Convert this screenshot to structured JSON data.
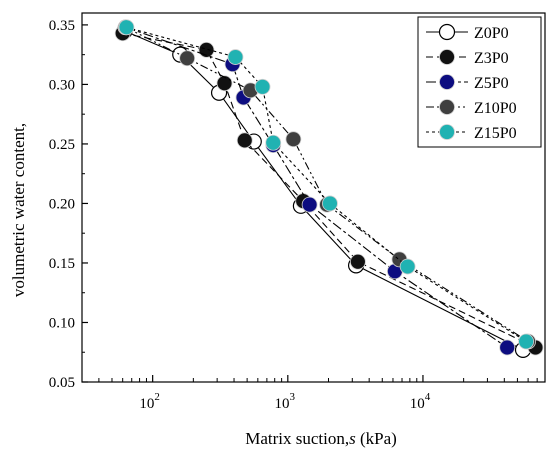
{
  "chart_data": {
    "type": "scatter",
    "xlabel_main": "Matrix suction,",
    "xlabel_var": "s",
    "xlabel_unit": " (kPa)",
    "ylabel": "volumetric water content,",
    "x_scale": "log",
    "xlim": [
      30,
      80000
    ],
    "ylim": [
      0.05,
      0.36
    ],
    "x_ticks": [
      {
        "value": 100,
        "base": "10",
        "exp": "2"
      },
      {
        "value": 1000,
        "base": "10",
        "exp": "3"
      },
      {
        "value": 10000,
        "base": "10",
        "exp": "4"
      }
    ],
    "y_ticks": [
      "0.05",
      "0.10",
      "0.15",
      "0.20",
      "0.25",
      "0.30",
      "0.35"
    ],
    "grid": false,
    "legend_position": "top-right",
    "series": [
      {
        "name": "Z0P0",
        "color": "#ffffff",
        "dash": "",
        "x": [
          62,
          160,
          310,
          560,
          1250,
          3200,
          55000
        ],
        "y": [
          0.345,
          0.325,
          0.293,
          0.252,
          0.198,
          0.148,
          0.077
        ]
      },
      {
        "name": "Z3P0",
        "color": "#111111",
        "dash": "7,4",
        "x": [
          60,
          250,
          340,
          480,
          1300,
          3300,
          68000
        ],
        "y": [
          0.343,
          0.329,
          0.301,
          0.253,
          0.202,
          0.151,
          0.079
        ]
      },
      {
        "name": "Z5P0",
        "color": "#0d0d80",
        "dash": "10,3,3,3",
        "x": [
          63,
          390,
          470,
          780,
          1450,
          6200,
          42000
        ],
        "y": [
          0.348,
          0.317,
          0.289,
          0.249,
          0.199,
          0.143,
          0.079
        ]
      },
      {
        "name": "Z10P0",
        "color": "#3f3f3f",
        "dash": "8,3,2,3,2,3",
        "x": [
          63,
          180,
          530,
          1100,
          1950,
          6700,
          60000
        ],
        "y": [
          0.348,
          0.322,
          0.295,
          0.254,
          0.199,
          0.153,
          0.084
        ]
      },
      {
        "name": "Z15P0",
        "color": "#20b2b2",
        "dash": "3,3",
        "x": [
          64,
          410,
          650,
          780,
          2050,
          7700,
          58000
        ],
        "y": [
          0.348,
          0.323,
          0.298,
          0.251,
          0.2,
          0.147,
          0.084
        ]
      }
    ]
  }
}
